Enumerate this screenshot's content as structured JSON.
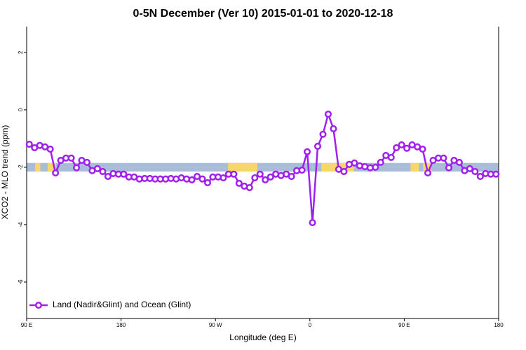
{
  "chart_data": {
    "type": "line",
    "title": "0-5N December (Ver 10)   2015-01-01 to 2020-12-18",
    "x_label": "Longitude (deg E)",
    "y_label": "XCO2 - MLO trend (ppm)",
    "xlim": [
      90,
      540
    ],
    "xticks": [
      {
        "value": 90,
        "label": "90 E"
      },
      180,
      {
        "value": 270,
        "label": "90 W"
      },
      {
        "value": 360,
        "label": "0"
      },
      {
        "value": 450,
        "label": "90 E"
      },
      {
        "value": 540,
        "label": "180"
      }
    ],
    "ylim": [
      -7.27,
      2.9
    ],
    "yticks": [
      2,
      0,
      -2,
      -4,
      -6
    ],
    "strip": {
      "ylim": [
        -2.15,
        -1.85
      ],
      "color": "#a9bcd8",
      "land_color": "#f8d76a",
      "land_segments": [
        [
          98,
          103
        ],
        [
          110,
          118
        ],
        [
          282,
          310
        ],
        [
          371,
          402
        ],
        [
          456,
          464
        ],
        [
          468,
          476
        ]
      ]
    },
    "legend_position": "bottom-left",
    "x": [
      92.5,
      97.5,
      102.5,
      107.5,
      112.5,
      117.5,
      122.5,
      127.5,
      132.5,
      137.5,
      142.5,
      147.5,
      152.5,
      157.5,
      162.5,
      167.5,
      172.5,
      177.5,
      182.5,
      187.5,
      192.5,
      197.5,
      202.5,
      207.5,
      212.5,
      217.5,
      222.5,
      227.5,
      232.5,
      237.5,
      242.5,
      247.5,
      252.5,
      257.5,
      262.5,
      267.5,
      272.5,
      277.5,
      282.5,
      287.5,
      292.5,
      297.5,
      302.5,
      307.5,
      312.5,
      317.5,
      322.5,
      327.5,
      332.5,
      337.5,
      342.5,
      347.5,
      352.5,
      357.5,
      362.5,
      367.5,
      372.5,
      377.5,
      382.5,
      387.5,
      392.5,
      397.5,
      402.5,
      407.5,
      412.5,
      417.5,
      422.5,
      427.5,
      432.5,
      437.5,
      442.5,
      447.5,
      452.5,
      457.5,
      462.5,
      467.5,
      472.5,
      477.5,
      482.5,
      487.5,
      492.5,
      497.5,
      502.5,
      507.5,
      512.5,
      517.5,
      522.5,
      527.5,
      532.5,
      537.5
    ],
    "series": [
      {
        "name": "Land (Nadir&Glint) and Ocean (Glint)",
        "color": "#a020f0",
        "values": [
          -1.2,
          -1.32,
          -1.24,
          -1.29,
          -1.37,
          -2.2,
          -1.76,
          -1.68,
          -1.68,
          -2.02,
          -1.76,
          -1.83,
          -2.12,
          -2.05,
          -2.15,
          -2.32,
          -2.22,
          -2.24,
          -2.24,
          -2.34,
          -2.34,
          -2.41,
          -2.39,
          -2.39,
          -2.41,
          -2.41,
          -2.41,
          -2.39,
          -2.41,
          -2.37,
          -2.41,
          -2.44,
          -2.32,
          -2.41,
          -2.54,
          -2.34,
          -2.34,
          -2.37,
          -2.24,
          -2.24,
          -2.56,
          -2.66,
          -2.71,
          -2.37,
          -2.24,
          -2.44,
          -2.34,
          -2.24,
          -2.29,
          -2.24,
          -2.32,
          -2.12,
          -2.1,
          -1.46,
          -3.93,
          -1.27,
          -0.85,
          -0.15,
          -0.66,
          -2.07,
          -2.15,
          -1.9,
          -1.85,
          -1.95,
          -1.98,
          -2.02,
          -2.0,
          -1.83,
          -1.59,
          -1.66,
          -1.32,
          -1.22,
          -1.34,
          -1.22,
          -1.29,
          -1.37,
          -2.2,
          -1.76,
          -1.68,
          -1.68,
          -2.02,
          -1.76,
          -1.83,
          -2.12,
          -2.05,
          -2.15,
          -2.32,
          -2.22,
          -2.24,
          -2.24
        ]
      }
    ]
  }
}
